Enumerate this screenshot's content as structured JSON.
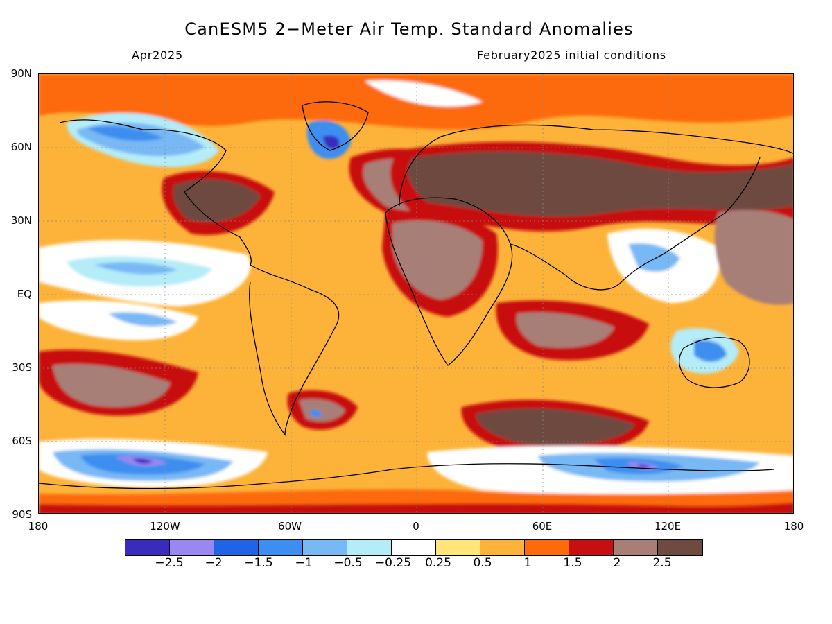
{
  "title": "CanESM5 2−Meter Air Temp. Standard Anomalies",
  "valid_month": "Apr2025",
  "init_conditions": "February2025 initial conditions",
  "map": {
    "lat_labels": [
      "90N",
      "60N",
      "30N",
      "EQ",
      "30S",
      "60S",
      "90S"
    ],
    "lon_labels": [
      "180",
      "120W",
      "60W",
      "0",
      "60E",
      "120E",
      "180"
    ],
    "projection": "cylindrical equidistant, global"
  },
  "colorbar": {
    "colors": [
      "#3a2bbd",
      "#9b87f2",
      "#1f64e6",
      "#3c8ef0",
      "#78b8f4",
      "#b4ecf8",
      "#ffffff",
      "#ffe57a",
      "#fdb33a",
      "#fd6a0b",
      "#c70f0f",
      "#a87f77",
      "#6e4a40"
    ],
    "labels": [
      "−2.5",
      "−2",
      "−1.5",
      "−1",
      "−0.5",
      "−0.25",
      "0.25",
      "0.5",
      "1",
      "1.5",
      "2",
      "2.5"
    ]
  },
  "chart_data": {
    "type": "heatmap",
    "variable": "2-Meter Air Temp. Standard Anomalies",
    "model": "CanESM5",
    "valid": "Apr2025",
    "initialized": "February2025",
    "x_range_deg": [
      -180,
      180
    ],
    "y_range_deg": [
      -90,
      90
    ],
    "levels": [
      -2.5,
      -2,
      -1.5,
      -1,
      -0.5,
      -0.25,
      0.25,
      0.5,
      1,
      1.5,
      2,
      2.5
    ],
    "regions": [
      {
        "region": "Northwest Canada / Alaska",
        "lon": -125,
        "lat": 65,
        "value": -1.5
      },
      {
        "region": "Southern Greenland",
        "lon": -45,
        "lat": 64,
        "value": -2.5
      },
      {
        "region": "Southeast Pacific (Antarctic coast)",
        "lon": -130,
        "lat": -68,
        "value": -2.5
      },
      {
        "region": "Indian Ocean sector of Antarctica",
        "lon": 110,
        "lat": -70,
        "value": -2.5
      },
      {
        "region": "Central Australia",
        "lon": 135,
        "lat": -25,
        "value": -1.5
      },
      {
        "region": "Eastern tropical Pacific",
        "lon": -120,
        "lat": -5,
        "value": -0.5
      },
      {
        "region": "Central US",
        "lon": -100,
        "lat": 40,
        "value": 2.5
      },
      {
        "region": "Northern Africa",
        "lon": 10,
        "lat": 25,
        "value": 2.5
      },
      {
        "region": "Northern Eurasia",
        "lon": 70,
        "lat": 55,
        "value": 2.5
      },
      {
        "region": "Northwest Pacific",
        "lon": 160,
        "lat": 20,
        "value": 2.5
      },
      {
        "region": "Southern Indian Ocean",
        "lon": 50,
        "lat": -50,
        "value": 2.5
      },
      {
        "region": "Southern Atlantic",
        "lon": -30,
        "lat": -35,
        "value": 1.5
      },
      {
        "region": "Arctic",
        "lon": 0,
        "lat": 85,
        "value": 1.5
      },
      {
        "region": "Tropical Atlantic",
        "lon": -20,
        "lat": -5,
        "value": 1
      }
    ]
  }
}
